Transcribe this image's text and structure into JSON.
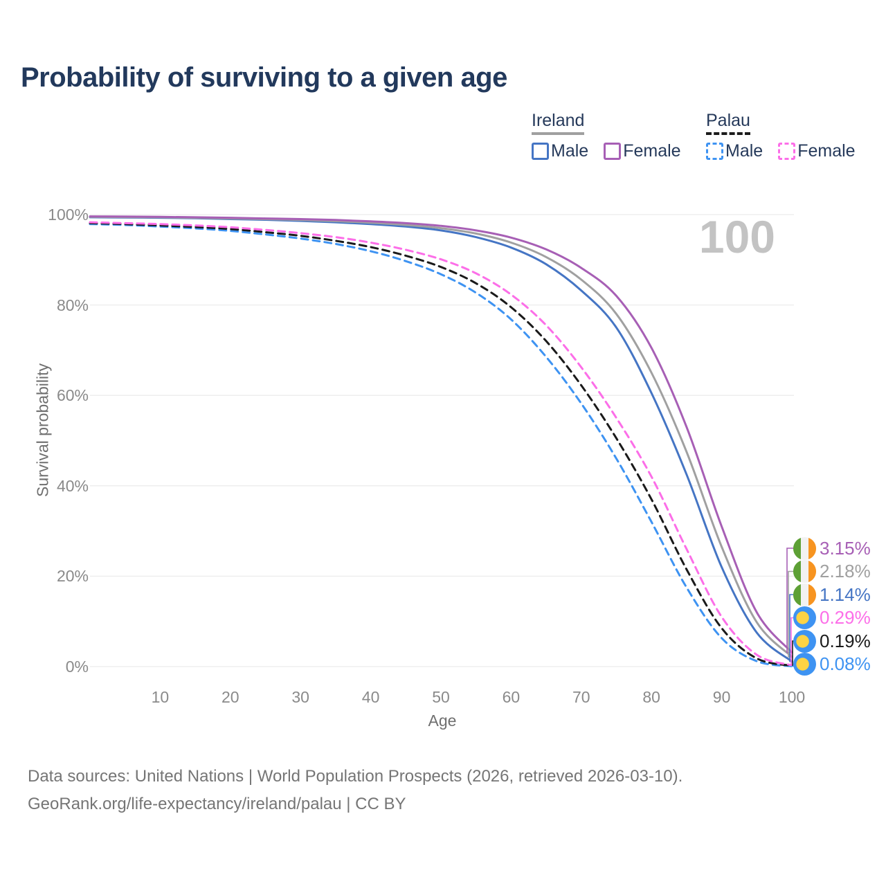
{
  "title": "Probability of surviving to a given age",
  "watermark_age": "100",
  "legend": {
    "groups": [
      {
        "label": "Ireland",
        "underline_color": "#a0a0a0",
        "underline_style": "solid",
        "items": [
          {
            "label": "Male",
            "color": "#4575c4",
            "dashed": false
          },
          {
            "label": "Female",
            "color": "#a75fb5",
            "dashed": false
          }
        ]
      },
      {
        "label": "Palau",
        "underline_color": "#1c1c1c",
        "underline_style": "dashed",
        "items": [
          {
            "label": "Male",
            "color": "#3e93f2",
            "dashed": true
          },
          {
            "label": "Female",
            "color": "#fc6ee8",
            "dashed": true
          }
        ]
      }
    ]
  },
  "chart_data": {
    "type": "line",
    "title": "Probability of surviving to a given age",
    "xlabel": "Age",
    "ylabel": "Survival probability",
    "xlim": [
      0,
      100
    ],
    "ylim": [
      0,
      100
    ],
    "x_ticks": [
      10,
      20,
      30,
      40,
      50,
      60,
      70,
      80,
      90,
      100
    ],
    "y_ticks": [
      0,
      20,
      40,
      60,
      80,
      100
    ],
    "y_tick_suffix": "%",
    "grid": "horizontal",
    "x": [
      0,
      5,
      10,
      15,
      20,
      25,
      30,
      35,
      40,
      45,
      50,
      55,
      60,
      65,
      70,
      75,
      80,
      85,
      90,
      95,
      100
    ],
    "series": [
      {
        "name": "Ireland Female",
        "country": "ireland",
        "flag": "ireland",
        "color": "#a75fb5",
        "dash": "solid",
        "end_label": "3.15%",
        "values": [
          99.6,
          99.55,
          99.5,
          99.4,
          99.3,
          99.15,
          99.0,
          98.8,
          98.5,
          98.1,
          97.5,
          96.5,
          94.9,
          92.3,
          88.2,
          82.0,
          70.5,
          53.0,
          31.0,
          12.0,
          3.15
        ]
      },
      {
        "name": "Ireland Both sexes",
        "country": "ireland",
        "flag": "ireland",
        "color": "#a0a0a0",
        "dash": "solid",
        "end_label": "2.18%",
        "values": [
          99.5,
          99.45,
          99.4,
          99.3,
          99.15,
          99.0,
          98.8,
          98.55,
          98.2,
          97.7,
          97.0,
          95.8,
          93.8,
          90.6,
          85.6,
          78.0,
          65.0,
          47.5,
          26.5,
          9.8,
          2.18
        ]
      },
      {
        "name": "Ireland Male",
        "country": "ireland",
        "flag": "ireland",
        "color": "#4575c4",
        "dash": "solid",
        "end_label": "1.14%",
        "values": [
          99.4,
          99.35,
          99.3,
          99.2,
          99.0,
          98.85,
          98.6,
          98.3,
          97.9,
          97.35,
          96.5,
          95.0,
          92.7,
          89.0,
          83.2,
          75.0,
          60.5,
          42.5,
          22.0,
          7.5,
          1.14
        ]
      },
      {
        "name": "Palau Female",
        "country": "palau",
        "flag": "palau",
        "color": "#fc6ee8",
        "dash": "dashed",
        "end_label": "0.29%",
        "values": [
          98.3,
          98.1,
          97.9,
          97.6,
          97.2,
          96.6,
          95.9,
          95.0,
          93.8,
          92.2,
          90.1,
          87.0,
          82.3,
          75.5,
          66.2,
          55.0,
          42.0,
          26.0,
          11.0,
          2.6,
          0.29
        ]
      },
      {
        "name": "Palau Both sexes",
        "country": "palau",
        "flag": "palau",
        "color": "#1a1a1a",
        "dash": "dashed",
        "end_label": "0.19%",
        "values": [
          98.1,
          97.9,
          97.6,
          97.25,
          96.8,
          96.1,
          95.3,
          94.2,
          92.8,
          90.9,
          88.4,
          84.8,
          79.5,
          72.0,
          62.2,
          50.5,
          37.0,
          21.5,
          8.5,
          1.8,
          0.19
        ]
      },
      {
        "name": "Palau Male",
        "country": "palau",
        "flag": "palau",
        "color": "#3e93f2",
        "dash": "dashed",
        "end_label": "0.08%",
        "values": [
          97.9,
          97.7,
          97.35,
          96.95,
          96.4,
          95.6,
          94.7,
          93.5,
          91.9,
          89.7,
          86.8,
          82.7,
          76.8,
          68.5,
          58.2,
          46.0,
          32.0,
          17.5,
          6.3,
          1.2,
          0.08
        ]
      }
    ],
    "flag_colors": {
      "ireland": {
        "green": "#5da035",
        "white": "#f2f2f2",
        "orange": "#f79420"
      },
      "palau": {
        "blue": "#3e93f2",
        "yellow": "#fdd345"
      }
    },
    "legend_position": "top-right"
  },
  "footer": {
    "line1": "Data sources: United Nations | World Population Prospects (2026, retrieved 2026-03-10).",
    "line2": "GeoRank.org/life-expectancy/ireland/palau | CC BY"
  }
}
